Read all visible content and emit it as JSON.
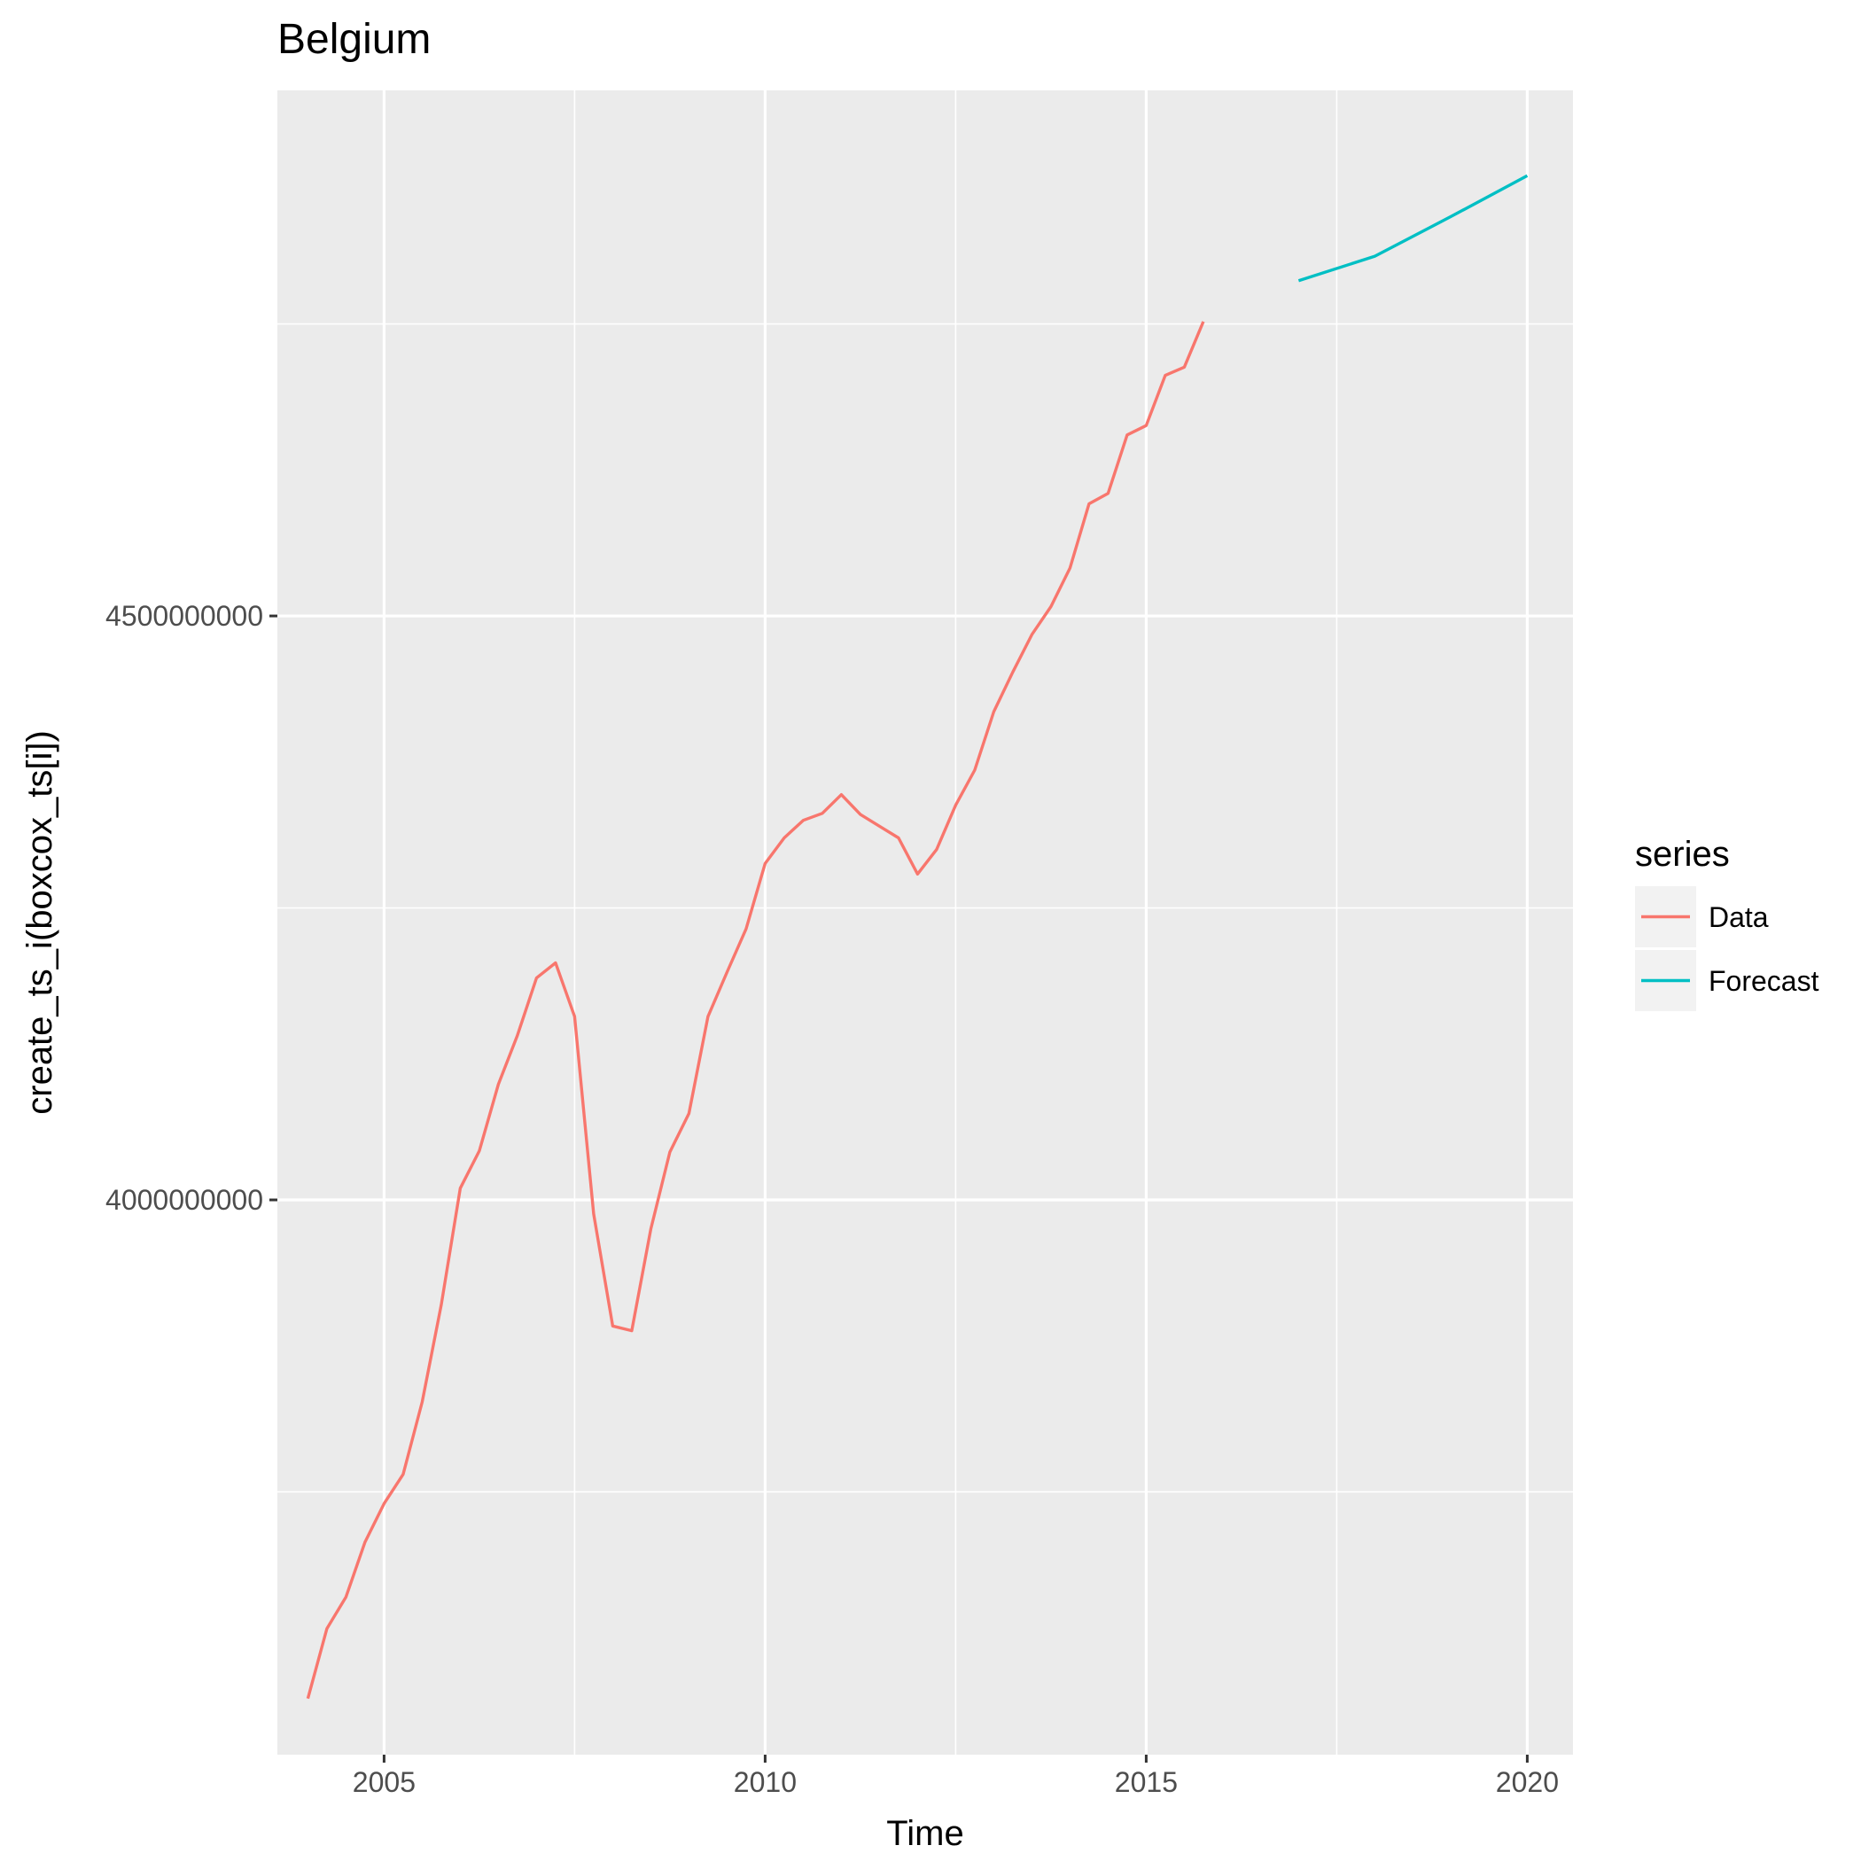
{
  "chart_data": {
    "type": "line",
    "title": "Belgium",
    "xlabel": "Time",
    "ylabel": "create_ts_i(boxcox_ts[i])",
    "xlim": [
      2003.6,
      2020.6
    ],
    "ylim": [
      3525000000,
      4950000000
    ],
    "x_ticks": [
      2005,
      2010,
      2015,
      2020
    ],
    "x_tick_labels": [
      "2005",
      "2010",
      "2015",
      "2020"
    ],
    "y_major_ticks": [
      4000000000,
      4500000000
    ],
    "y_tick_labels": [
      "4000000000",
      "4500000000"
    ],
    "y_minor_gridlines": [
      3750000000,
      4250000000,
      4750000000
    ],
    "grid": true,
    "legend": {
      "title": "series",
      "position": "right",
      "entries": [
        "Data",
        "Forecast"
      ]
    },
    "series": [
      {
        "name": "Data",
        "color": "#F8766D",
        "x": [
          2004.0,
          2004.25,
          2004.5,
          2004.75,
          2005.0,
          2005.25,
          2005.5,
          2005.75,
          2006.0,
          2006.25,
          2006.5,
          2006.75,
          2007.0,
          2007.25,
          2007.5,
          2007.75,
          2008.0,
          2008.25,
          2008.5,
          2008.75,
          2009.0,
          2009.25,
          2009.5,
          2009.75,
          2010.0,
          2010.25,
          2010.5,
          2010.75,
          2011.0,
          2011.25,
          2011.5,
          2011.75,
          2012.0,
          2012.25,
          2012.5,
          2012.75,
          2013.0,
          2013.25,
          2013.5,
          2013.75,
          2014.0,
          2014.25,
          2014.5,
          2014.75,
          2015.0,
          2015.25,
          2015.5,
          2015.75
        ],
        "values": [
          3573000000,
          3633000000,
          3660000000,
          3707000000,
          3740000000,
          3765000000,
          3827000000,
          3910000000,
          4010000000,
          4042000000,
          4099000000,
          4141000000,
          4190000000,
          4203000000,
          4157000000,
          3988000000,
          3892000000,
          3888000000,
          3975000000,
          4041000000,
          4074000000,
          4157000000,
          4195000000,
          4232000000,
          4288000000,
          4310000000,
          4325000000,
          4331000000,
          4347000000,
          4330000000,
          4320000000,
          4310000000,
          4279000000,
          4300000000,
          4338000000,
          4368000000,
          4418000000,
          4452000000,
          4484000000,
          4508000000,
          4541000000,
          4596000000,
          4605000000,
          4655000000,
          4663000000,
          4706000000,
          4713000000,
          4752000000
        ]
      },
      {
        "name": "Forecast",
        "color": "#00BFC4",
        "x": [
          2017.0,
          2018.0,
          2019.0,
          2020.0
        ],
        "values": [
          4787000000,
          4808000000,
          4842000000,
          4877000000
        ]
      }
    ]
  }
}
